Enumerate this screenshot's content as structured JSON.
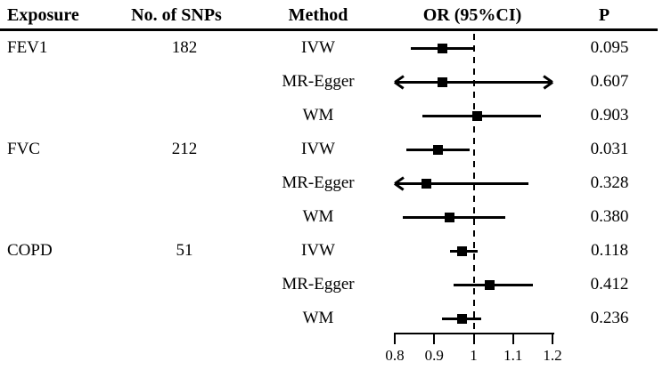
{
  "colors": {
    "foreground": "#000000",
    "background": "#ffffff"
  },
  "chart_data": {
    "type": "forest",
    "title": "",
    "columns": [
      "Exposure",
      "No. of SNPs",
      "Method",
      "OR (95%CI)",
      "P"
    ],
    "axis": {
      "min": 0.8,
      "max": 1.2,
      "ticks": [
        0.8,
        0.9,
        1,
        1.1,
        1.2
      ],
      "reference_line": 1,
      "orientation": "horizontal-OR-scale"
    },
    "legend": "none",
    "rows": [
      {
        "exposure": "FEV1",
        "snps": "182",
        "method": "IVW",
        "or": 0.92,
        "ci_low": 0.84,
        "ci_high": 1.0,
        "arrow_low": false,
        "arrow_high": false,
        "p": "0.095"
      },
      {
        "exposure": "",
        "snps": "",
        "method": "MR-Egger",
        "or": 0.92,
        "ci_low": 0.8,
        "ci_high": 1.2,
        "arrow_low": true,
        "arrow_high": true,
        "p": "0.607"
      },
      {
        "exposure": "",
        "snps": "",
        "method": "WM",
        "or": 1.01,
        "ci_low": 0.87,
        "ci_high": 1.17,
        "arrow_low": false,
        "arrow_high": false,
        "p": "0.903"
      },
      {
        "exposure": "FVC",
        "snps": "212",
        "method": "IVW",
        "or": 0.91,
        "ci_low": 0.83,
        "ci_high": 0.99,
        "arrow_low": false,
        "arrow_high": false,
        "p": "0.031"
      },
      {
        "exposure": "",
        "snps": "",
        "method": "MR-Egger",
        "or": 0.88,
        "ci_low": 0.8,
        "ci_high": 1.14,
        "arrow_low": true,
        "arrow_high": false,
        "p": "0.328"
      },
      {
        "exposure": "",
        "snps": "",
        "method": "WM",
        "or": 0.94,
        "ci_low": 0.82,
        "ci_high": 1.08,
        "arrow_low": false,
        "arrow_high": false,
        "p": "0.380"
      },
      {
        "exposure": "COPD",
        "snps": "51",
        "method": "IVW",
        "or": 0.97,
        "ci_low": 0.94,
        "ci_high": 1.01,
        "arrow_low": false,
        "arrow_high": false,
        "p": "0.118"
      },
      {
        "exposure": "",
        "snps": "",
        "method": "MR-Egger",
        "or": 1.04,
        "ci_low": 0.95,
        "ci_high": 1.15,
        "arrow_low": false,
        "arrow_high": false,
        "p": "0.412"
      },
      {
        "exposure": "",
        "snps": "",
        "method": "WM",
        "or": 0.97,
        "ci_low": 0.92,
        "ci_high": 1.02,
        "arrow_low": false,
        "arrow_high": false,
        "p": "0.236"
      }
    ]
  }
}
